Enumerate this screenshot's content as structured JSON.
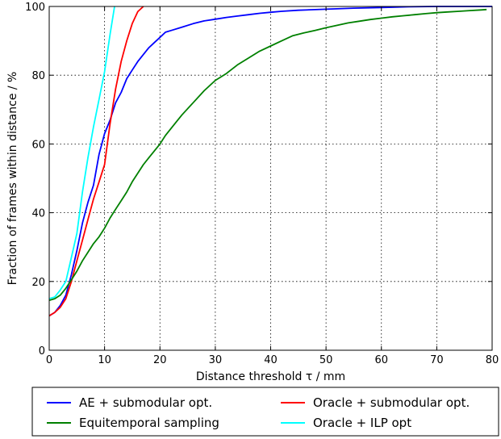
{
  "chart_data": {
    "type": "line",
    "xlabel": "Distance threshold τ / mm",
    "ylabel": "Fraction of frames within distance / %",
    "xlim": [
      0,
      80
    ],
    "ylim": [
      0,
      100
    ],
    "xticks": [
      "0",
      "10",
      "20",
      "30",
      "40",
      "50",
      "60",
      "70",
      "80"
    ],
    "yticks": [
      "0",
      "20",
      "40",
      "60",
      "80",
      "100"
    ],
    "grid": true,
    "legend_position": "bottom, outside plot",
    "series": [
      {
        "name": "AE + submodular opt.",
        "color": "#0000ff",
        "x": [
          0,
          1,
          2,
          3,
          4,
          5,
          6,
          7,
          8,
          9,
          10,
          11,
          12,
          13,
          14,
          15,
          16,
          17,
          18,
          19,
          20,
          21,
          22,
          24,
          26,
          28,
          30,
          32,
          34,
          36,
          38,
          40,
          42,
          45,
          50,
          55,
          60,
          65,
          70,
          80
        ],
        "y": [
          10,
          11,
          13,
          16,
          22,
          29,
          37,
          43,
          48,
          57,
          63,
          67,
          72,
          75,
          79,
          81.5,
          84,
          86,
          88,
          89.5,
          91,
          92.5,
          93,
          94,
          95,
          95.8,
          96.3,
          96.8,
          97.2,
          97.6,
          98,
          98.3,
          98.6,
          98.9,
          99.2,
          99.5,
          99.7,
          99.9,
          100,
          100
        ]
      },
      {
        "name": "Oracle + submodular opt.",
        "color": "#ff0000",
        "x": [
          0,
          1,
          2,
          3,
          4,
          5,
          6,
          7,
          8,
          9,
          10,
          11,
          12,
          13,
          14,
          15,
          16,
          17
        ],
        "y": [
          10,
          11,
          12.5,
          15,
          20,
          26,
          32,
          38,
          44,
          49,
          54,
          66,
          76,
          84,
          90,
          95,
          98.5,
          100
        ]
      },
      {
        "name": "Equitemporal sampling",
        "color": "#008000",
        "x": [
          0,
          1,
          2,
          3,
          4,
          5,
          6,
          7,
          8,
          9,
          10,
          11,
          12,
          13,
          14,
          15,
          16,
          17,
          18,
          19,
          20,
          21,
          22,
          23,
          24,
          26,
          28,
          30,
          32,
          34,
          36,
          38,
          40,
          42,
          44,
          46,
          48,
          50,
          52,
          54,
          56,
          58,
          60,
          62,
          64,
          66,
          68,
          70,
          72,
          74,
          76,
          78,
          79
        ],
        "y": [
          14.5,
          15,
          16,
          18,
          20.5,
          23,
          26,
          28.5,
          31,
          33,
          35.5,
          38.5,
          41,
          43.5,
          46,
          49,
          51.5,
          54,
          56,
          58,
          60,
          62.5,
          64.5,
          66.5,
          68.5,
          72,
          75.5,
          78.5,
          80.5,
          83,
          85,
          87,
          88.5,
          90,
          91.5,
          92.3,
          93,
          93.8,
          94.5,
          95.2,
          95.7,
          96.2,
          96.6,
          97,
          97.3,
          97.6,
          97.9,
          98.2,
          98.4,
          98.6,
          98.8,
          99,
          99.1
        ]
      },
      {
        "name": "Oracle + ILP opt",
        "color": "#00ffff",
        "x": [
          0,
          1,
          2,
          3,
          4,
          5,
          6,
          7,
          8,
          9,
          10,
          11,
          11.8
        ],
        "y": [
          15,
          15.5,
          17.5,
          20,
          27,
          34,
          46,
          56,
          65,
          73,
          81,
          92,
          100
        ]
      }
    ]
  }
}
